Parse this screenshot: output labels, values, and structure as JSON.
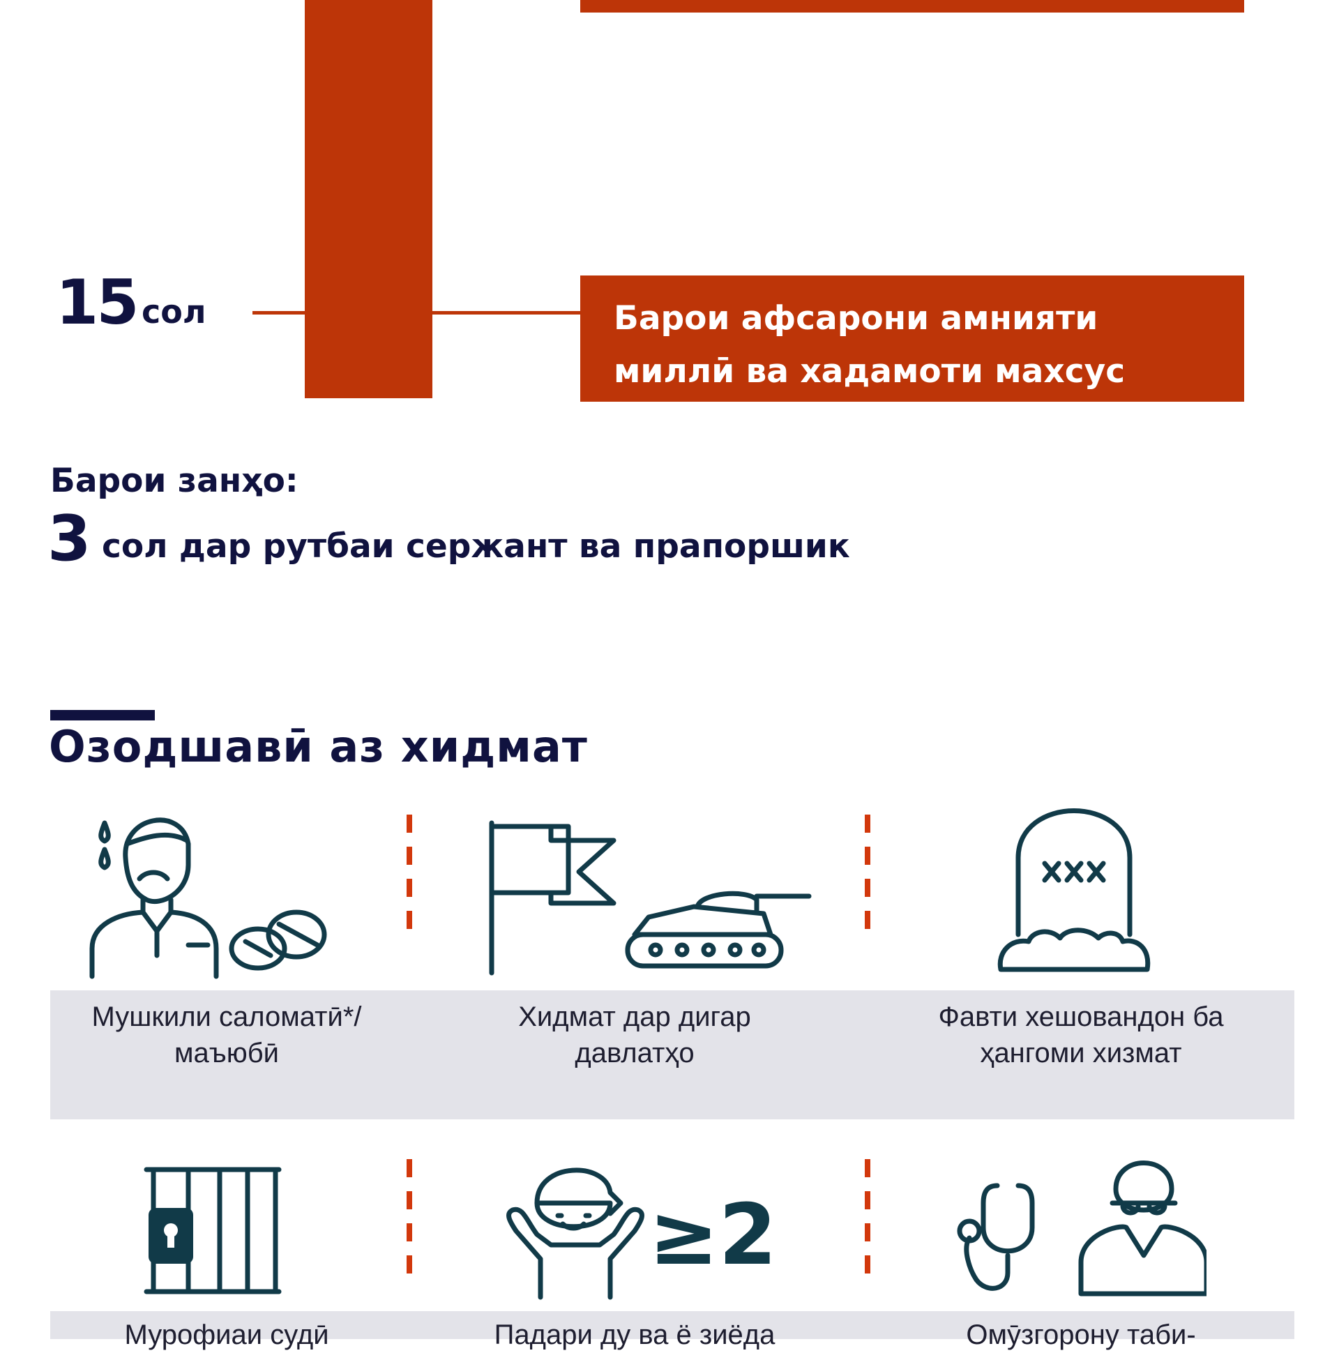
{
  "timeline": {
    "years_number": "15",
    "years_unit": "сол",
    "box_label": "Барои афсарони амнияти миллӣ ва хадамоти махсус"
  },
  "women": {
    "title": "Барои занҳо:",
    "number": "3",
    "text": "сол дар рутбаи сержант ва прапоршик"
  },
  "section": {
    "title": "Озодшавӣ аз хидмат"
  },
  "reasons": [
    {
      "caption": "Мушкили саломатӣ*/ маъюбӣ",
      "icon": "sick-person-pills-icon"
    },
    {
      "caption": "Хидмат дар дигар давлатҳо",
      "icon": "flag-tank-icon"
    },
    {
      "caption": "Фавти хешовандон ба ҳангоми хизмат",
      "icon": "tombstone-icon"
    },
    {
      "caption": "Мурофиаи судӣ",
      "icon": "prison-bars-icon"
    },
    {
      "caption": "Падари ду ва ё зиёда",
      "icon": "child-two-or-more-icon",
      "badge": "≥2"
    },
    {
      "caption": "Омӯзгорону таби-",
      "icon": "stethoscope-doctor-icon"
    }
  ],
  "colors": {
    "accent": "#bd3508",
    "navy": "#10123f",
    "icon": "#113a48",
    "panel": "#e3e3e9"
  }
}
